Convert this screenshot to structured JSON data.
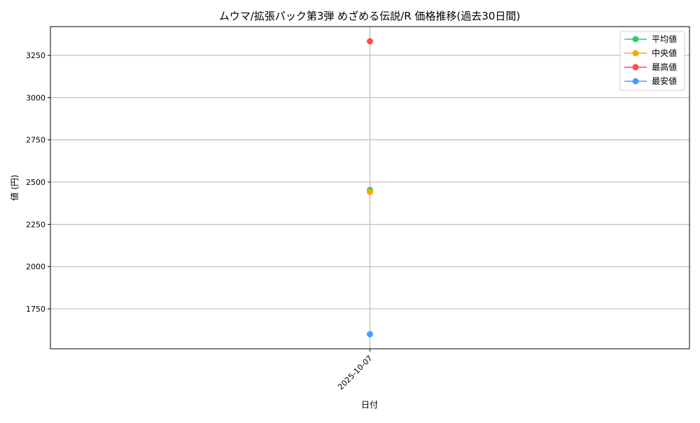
{
  "chart_data": {
    "type": "line",
    "title": "ムウマ/拡張パック第3弾 めざめる伝説/R 価格推移(過去30日間)",
    "xlabel": "日付",
    "ylabel": "値 (円)",
    "x": [
      "2025-10-07"
    ],
    "ylim": [
      1514,
      3420
    ],
    "yticks": [
      1750,
      2000,
      2250,
      2500,
      2750,
      3000,
      3250
    ],
    "grid": true,
    "legend_position": "top-right",
    "series": [
      {
        "name": "平均値",
        "color": "#2ecc71",
        "values": [
          2454
        ]
      },
      {
        "name": "中央値",
        "color": "#ffa500",
        "values": [
          2442
        ]
      },
      {
        "name": "最高値",
        "color": "#ff4b4b",
        "values": [
          3333
        ]
      },
      {
        "name": "最安値",
        "color": "#4b9bff",
        "values": [
          1600
        ]
      }
    ]
  }
}
